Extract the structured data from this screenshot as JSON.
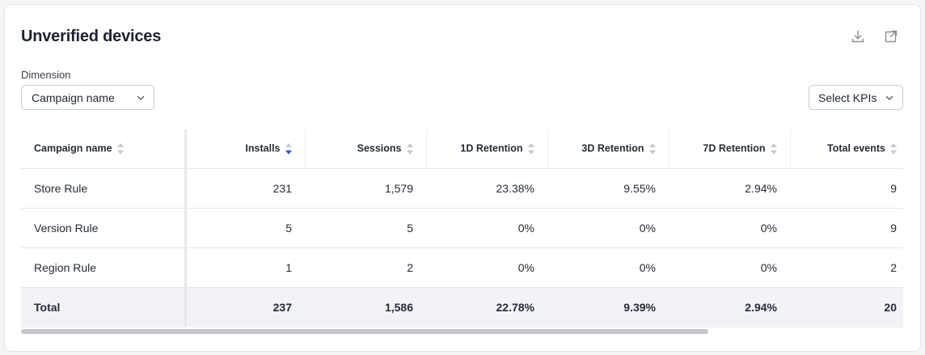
{
  "title": "Unverified devices",
  "dimension": {
    "label": "Dimension",
    "selected": "Campaign name"
  },
  "kpi_select": {
    "label": "Select KPIs"
  },
  "icons": {
    "download": "download-icon",
    "export": "external-link-icon",
    "chevron": "chevron-down-icon"
  },
  "colors": {
    "sort_active": "#2f5bd3",
    "total_row_bg": "#f2f3f7"
  },
  "table": {
    "columns": [
      "Campaign name",
      "Installs",
      "Sessions",
      "1D Retention",
      "3D Retention",
      "7D Retention",
      "Total events"
    ],
    "sorted_column": "Installs",
    "sort_direction": "descending",
    "rows": [
      [
        "Store Rule",
        "231",
        "1,579",
        "23.38%",
        "9.55%",
        "2.94%",
        "9"
      ],
      [
        "Version Rule",
        "5",
        "5",
        "0%",
        "0%",
        "0%",
        "9"
      ],
      [
        "Region Rule",
        "1",
        "2",
        "0%",
        "0%",
        "0%",
        "2"
      ]
    ],
    "total": [
      "Total",
      "237",
      "1,586",
      "22.78%",
      "9.39%",
      "2.94%",
      "20"
    ]
  }
}
